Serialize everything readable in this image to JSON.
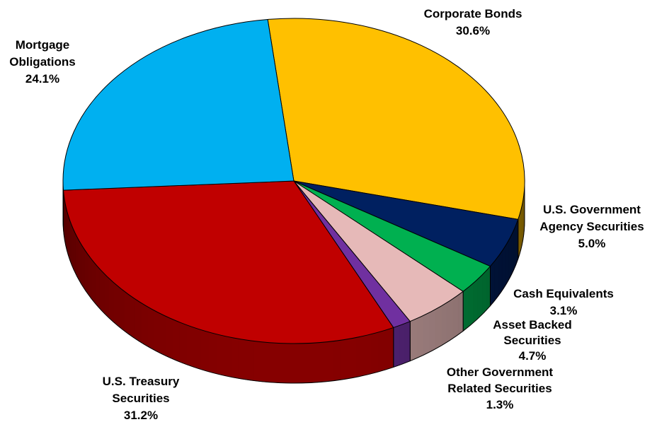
{
  "chart_data": {
    "type": "pie",
    "style": "3d",
    "title": "",
    "slices": [
      {
        "label": "Corporate Bonds",
        "percent": "30.6%",
        "value": 30.6,
        "color": "#FFC000"
      },
      {
        "label": "U.S. Government Agency Securities",
        "percent": "5.0%",
        "value": 5.0,
        "color": "#002060"
      },
      {
        "label": "Cash Equivalents",
        "percent": "3.1%",
        "value": 3.1,
        "color": "#00B050"
      },
      {
        "label": "Asset Backed Securities",
        "percent": "4.7%",
        "value": 4.7,
        "color": "#E6B9B8"
      },
      {
        "label": "Other Government Related Securities",
        "percent": "1.3%",
        "value": 1.3,
        "color": "#7030A0"
      },
      {
        "label": "U.S. Treasury Securities",
        "percent": "31.2%",
        "value": 31.2,
        "color": "#C00000"
      },
      {
        "label": "Mortgage Obligations",
        "percent": "24.1%",
        "value": 24.1,
        "color": "#00B0F0"
      }
    ]
  },
  "labels": {
    "corporate_bonds": {
      "line1": "Corporate Bonds",
      "pct": "30.6%"
    },
    "us_gov_agency": {
      "line1": "U.S. Government",
      "line2": "Agency  Securities",
      "pct": "5.0%"
    },
    "cash_equivalents": {
      "line1": "Cash Equivalents",
      "pct": "3.1%"
    },
    "asset_backed": {
      "line1": "Asset Backed",
      "line2": "Securities",
      "pct": "4.7%"
    },
    "other_gov": {
      "line1": "Other Government",
      "line2": "Related  Securities",
      "pct": "1.3%"
    },
    "us_treasury": {
      "line1": "U.S. Treasury",
      "line2": "Securities",
      "pct": "31.2%"
    },
    "mortgage": {
      "line1": "Mortgage",
      "line2": "Obligations",
      "pct": "24.1%"
    }
  }
}
